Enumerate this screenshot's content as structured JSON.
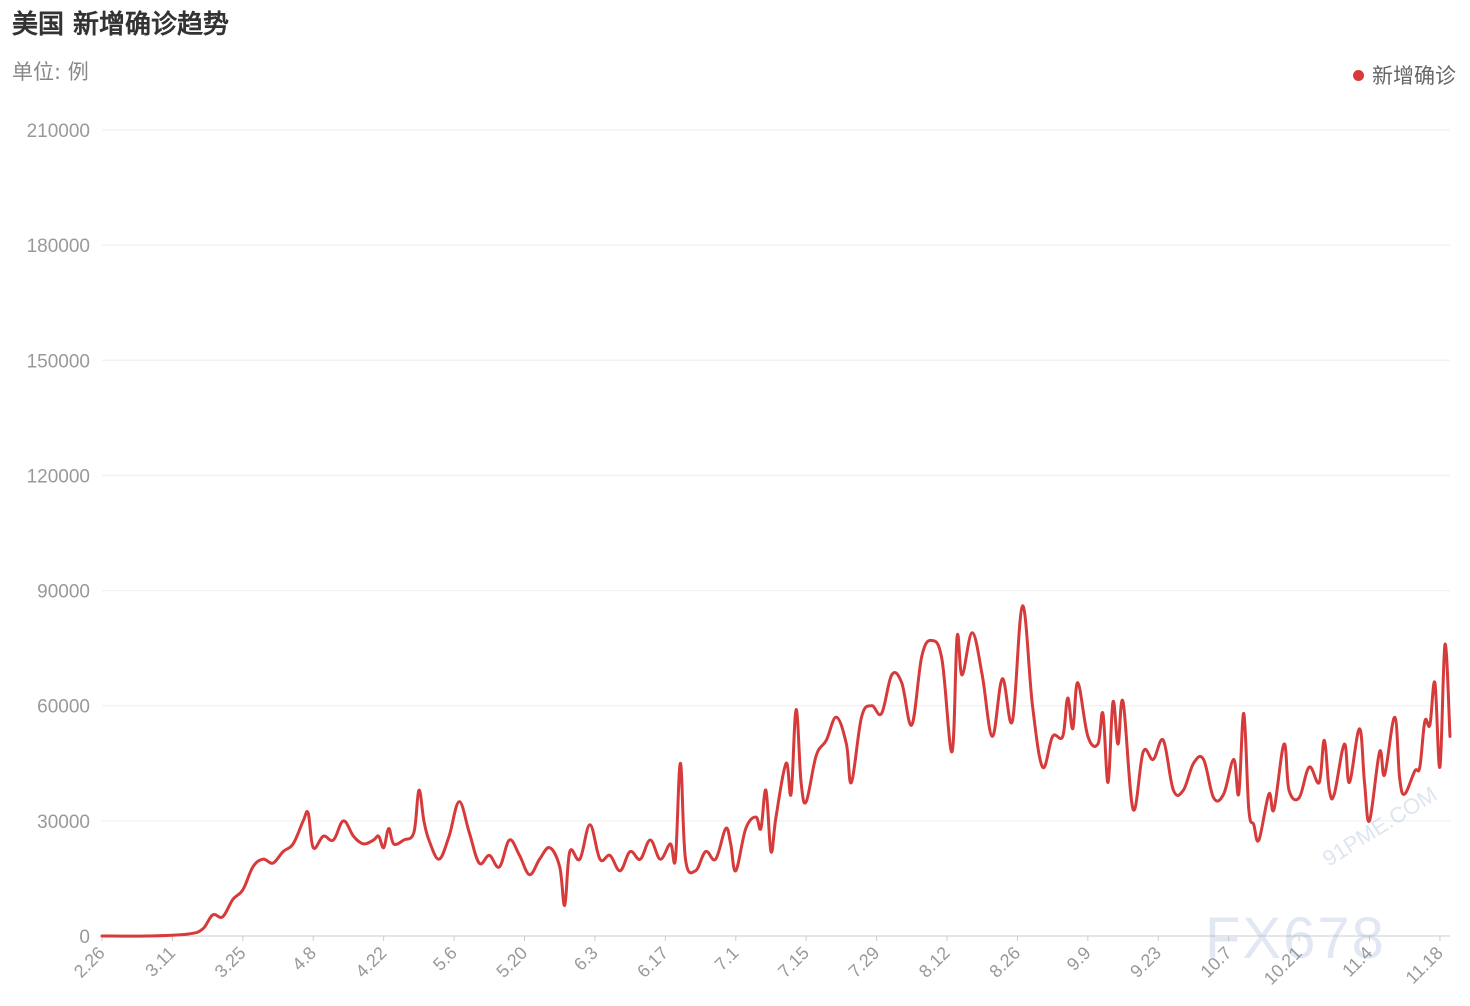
{
  "title": "美国 新增确诊趋势",
  "unit_label": "单位: 例",
  "legend_label": "新增确诊",
  "watermark": "FX678",
  "watermark_site": "91PME.COM",
  "colors": {
    "series": "#d63a3a",
    "grid": "#eeeeee",
    "axis_text": "#999999"
  },
  "chart_data": {
    "type": "line",
    "title": "美国 新增确诊趋势",
    "ylabel": "单位: 例",
    "ylim": [
      0,
      210000
    ],
    "yticks": [
      0,
      30000,
      60000,
      90000,
      120000,
      150000,
      180000,
      210000
    ],
    "xticks": [
      "2.26",
      "3.11",
      "3.25",
      "4.8",
      "4.22",
      "5.6",
      "5.20",
      "6.3",
      "6.17",
      "7.1",
      "7.15",
      "7.29",
      "8.12",
      "8.26",
      "9.9",
      "9.23",
      "10.7",
      "10.21",
      "11.4",
      "11.18"
    ],
    "xrange": [
      "2.26",
      "11.20"
    ],
    "grid": true,
    "legend_position": "top-right",
    "series": [
      {
        "name": "新增确诊",
        "points": [
          [
            "2.26",
            0
          ],
          [
            "3.6",
            0
          ],
          [
            "3.14",
            500
          ],
          [
            "3.17",
            1800
          ],
          [
            "3.19",
            5500
          ],
          [
            "3.21",
            5000
          ],
          [
            "3.23",
            9500
          ],
          [
            "3.25",
            12000
          ],
          [
            "3.27",
            18000
          ],
          [
            "3.29",
            20000
          ],
          [
            "3.31",
            19000
          ],
          [
            "4.2",
            22000
          ],
          [
            "4.4",
            24000
          ],
          [
            "4.6",
            30000
          ],
          [
            "4.7",
            32000
          ],
          [
            "4.8",
            23000
          ],
          [
            "4.10",
            26000
          ],
          [
            "4.12",
            25000
          ],
          [
            "4.14",
            30000
          ],
          [
            "4.16",
            26000
          ],
          [
            "4.18",
            24000
          ],
          [
            "4.20",
            25000
          ],
          [
            "4.21",
            26000
          ],
          [
            "4.22",
            23000
          ],
          [
            "4.23",
            28000
          ],
          [
            "4.24",
            24000
          ],
          [
            "4.26",
            25000
          ],
          [
            "4.28",
            27000
          ],
          [
            "4.29",
            38000
          ],
          [
            "4.30",
            30000
          ],
          [
            "5.1",
            25000
          ],
          [
            "5.3",
            20000
          ],
          [
            "5.5",
            26000
          ],
          [
            "5.7",
            35000
          ],
          [
            "5.9",
            27000
          ],
          [
            "5.11",
            19000
          ],
          [
            "5.13",
            21000
          ],
          [
            "5.15",
            18000
          ],
          [
            "5.17",
            25000
          ],
          [
            "5.19",
            21000
          ],
          [
            "5.21",
            16000
          ],
          [
            "5.23",
            20000
          ],
          [
            "5.25",
            23000
          ],
          [
            "5.27",
            18000
          ],
          [
            "5.28",
            8000
          ],
          [
            "5.29",
            22000
          ],
          [
            "5.31",
            20000
          ],
          [
            "6.2",
            29000
          ],
          [
            "6.4",
            20000
          ],
          [
            "6.6",
            21000
          ],
          [
            "6.8",
            17000
          ],
          [
            "6.10",
            22000
          ],
          [
            "6.12",
            20000
          ],
          [
            "6.14",
            25000
          ],
          [
            "6.16",
            20000
          ],
          [
            "6.18",
            24000
          ],
          [
            "6.19",
            20000
          ],
          [
            "6.20",
            45000
          ],
          [
            "6.21",
            20000
          ],
          [
            "6.23",
            17000
          ],
          [
            "6.25",
            22000
          ],
          [
            "6.27",
            20000
          ],
          [
            "6.29",
            28000
          ],
          [
            "6.30",
            24000
          ],
          [
            "7.1",
            17000
          ],
          [
            "7.3",
            28000
          ],
          [
            "7.5",
            31000
          ],
          [
            "7.6",
            28000
          ],
          [
            "7.7",
            38000
          ],
          [
            "7.8",
            22000
          ],
          [
            "7.9",
            31000
          ],
          [
            "7.11",
            45000
          ],
          [
            "7.12",
            37000
          ],
          [
            "7.13",
            59000
          ],
          [
            "7.14",
            40000
          ],
          [
            "7.15",
            35000
          ],
          [
            "7.17",
            47000
          ],
          [
            "7.19",
            51000
          ],
          [
            "7.21",
            57000
          ],
          [
            "7.23",
            50000
          ],
          [
            "7.24",
            40000
          ],
          [
            "7.26",
            57000
          ],
          [
            "7.28",
            60000
          ],
          [
            "7.30",
            58000
          ],
          [
            "8.1",
            68000
          ],
          [
            "8.3",
            66000
          ],
          [
            "8.5",
            55000
          ],
          [
            "8.7",
            73000
          ],
          [
            "8.9",
            77000
          ],
          [
            "8.11",
            72000
          ],
          [
            "8.13",
            48000
          ],
          [
            "8.14",
            78000
          ],
          [
            "8.15",
            68000
          ],
          [
            "8.17",
            79000
          ],
          [
            "8.19",
            68000
          ],
          [
            "8.21",
            52000
          ],
          [
            "8.23",
            67000
          ],
          [
            "8.25",
            56000
          ],
          [
            "8.27",
            86000
          ],
          [
            "8.29",
            60000
          ],
          [
            "8.31",
            44000
          ],
          [
            "9.2",
            52000
          ],
          [
            "9.4",
            52000
          ],
          [
            "9.5",
            62000
          ],
          [
            "9.6",
            54000
          ],
          [
            "9.7",
            66000
          ],
          [
            "9.9",
            52000
          ],
          [
            "9.11",
            50000
          ],
          [
            "9.12",
            58000
          ],
          [
            "9.13",
            40000
          ],
          [
            "9.14",
            61000
          ],
          [
            "9.15",
            50000
          ],
          [
            "9.16",
            61000
          ],
          [
            "9.18",
            33000
          ],
          [
            "9.20",
            48000
          ],
          [
            "9.22",
            46000
          ],
          [
            "9.24",
            51000
          ],
          [
            "9.26",
            38000
          ],
          [
            "9.28",
            38000
          ],
          [
            "9.30",
            45000
          ],
          [
            "10.2",
            46000
          ],
          [
            "10.4",
            36000
          ],
          [
            "10.6",
            37000
          ],
          [
            "10.8",
            46000
          ],
          [
            "10.9",
            37000
          ],
          [
            "10.10",
            58000
          ],
          [
            "10.11",
            33000
          ],
          [
            "10.12",
            29000
          ],
          [
            "10.13",
            25000
          ],
          [
            "10.15",
            37000
          ],
          [
            "10.16",
            33000
          ],
          [
            "10.18",
            50000
          ],
          [
            "10.19",
            38000
          ],
          [
            "10.21",
            36000
          ],
          [
            "10.23",
            44000
          ],
          [
            "10.25",
            40000
          ],
          [
            "10.26",
            51000
          ],
          [
            "10.27",
            38000
          ],
          [
            "10.28",
            37000
          ],
          [
            "10.30",
            50000
          ],
          [
            "10.31",
            40000
          ],
          [
            "11.2",
            54000
          ],
          [
            "11.3",
            40000
          ],
          [
            "11.4",
            30000
          ],
          [
            "11.6",
            48000
          ],
          [
            "11.7",
            42000
          ],
          [
            "11.9",
            57000
          ],
          [
            "11.10",
            41000
          ],
          [
            "11.11",
            37000
          ],
          [
            "11.13",
            43000
          ],
          [
            "11.14",
            44000
          ],
          [
            "11.15",
            56000
          ],
          [
            "11.16",
            55000
          ],
          [
            "11.17",
            66000
          ],
          [
            "11.18",
            44000
          ],
          [
            "11.19",
            76000
          ],
          [
            "11.20",
            52000
          ]
        ]
      }
    ]
  }
}
